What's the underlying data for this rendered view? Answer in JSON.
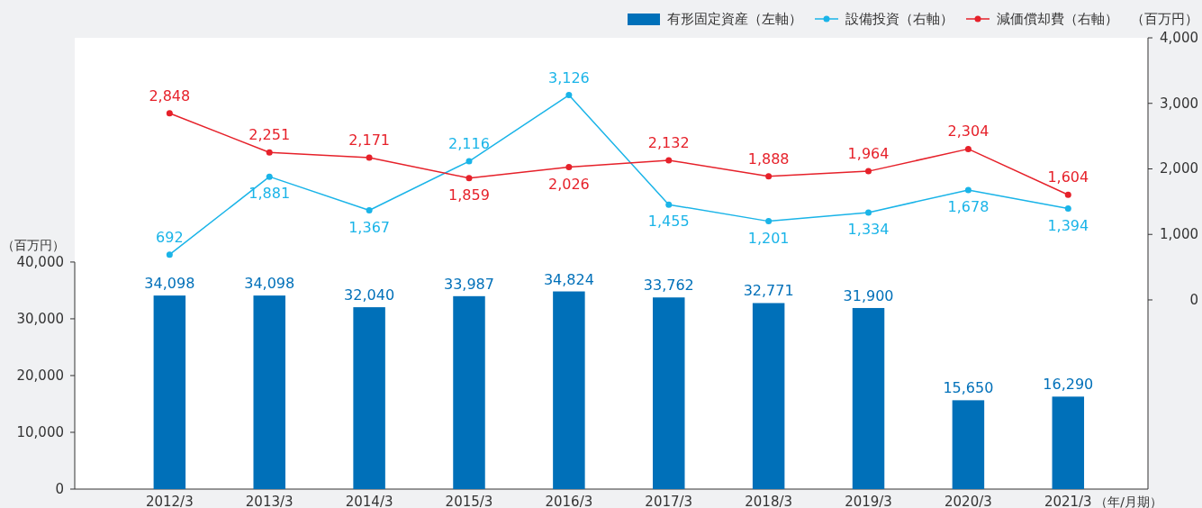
{
  "chart_data": {
    "type": "bar",
    "categories": [
      "2012/3",
      "2013/3",
      "2014/3",
      "2015/3",
      "2016/3",
      "2017/3",
      "2018/3",
      "2019/3",
      "2020/3",
      "2021/3"
    ],
    "series": [
      {
        "name": "有形固定資産（左軸）",
        "color": "#0070b9",
        "values": [
          34098,
          34098,
          32040,
          33987,
          34824,
          33762,
          32771,
          31900,
          15650,
          16290
        ],
        "value_labels": [
          "34,098",
          "34,098",
          "32,040",
          "33,987",
          "34,824",
          "33,762",
          "32,771",
          "31,900",
          "15,650",
          "16,290"
        ]
      },
      {
        "name": "設備投資（右軸）",
        "type": "line",
        "axis": "y2",
        "color": "#1ab4e8",
        "values": [
          692,
          1881,
          1367,
          2116,
          3126,
          1455,
          1201,
          1334,
          1678,
          1394
        ],
        "value_labels": [
          "692",
          "1,881",
          "1,367",
          "2,116",
          "3,126",
          "1,455",
          "1,201",
          "1,334",
          "1,678",
          "1,394"
        ]
      },
      {
        "name": "減価償却費（右軸）",
        "type": "line",
        "axis": "y2",
        "color": "#e6212a",
        "values": [
          2848,
          2251,
          2171,
          1859,
          2026,
          2132,
          1888,
          1964,
          2304,
          1604
        ],
        "value_labels": [
          "2,848",
          "2,251",
          "2,171",
          "1,859",
          "2,026",
          "2,132",
          "1,888",
          "1,964",
          "2,304",
          "1,604"
        ]
      }
    ],
    "ylim": [
      0,
      79500
    ],
    "yticks": [
      0,
      {
        "value": 10000,
        "label": "10,000"
      },
      {
        "value": 20000,
        "label": "20,000"
      },
      {
        "value": 30000,
        "label": "30,000"
      },
      {
        "value": 40000,
        "label": "40,000"
      }
    ],
    "y2lim": [
      -2887,
      4000
    ],
    "y2ticks": [
      0,
      {
        "value": 1000,
        "label": "1,000"
      },
      {
        "value": 2000,
        "label": "2,000"
      },
      {
        "value": 3000,
        "label": "3,000"
      },
      {
        "value": 4000,
        "label": "4,000"
      }
    ],
    "ylabel": "（百万円）",
    "y2label": "（百万円）",
    "xlabel": "（年/月期）",
    "legend": "top right",
    "marker": "circle",
    "grid": false
  }
}
